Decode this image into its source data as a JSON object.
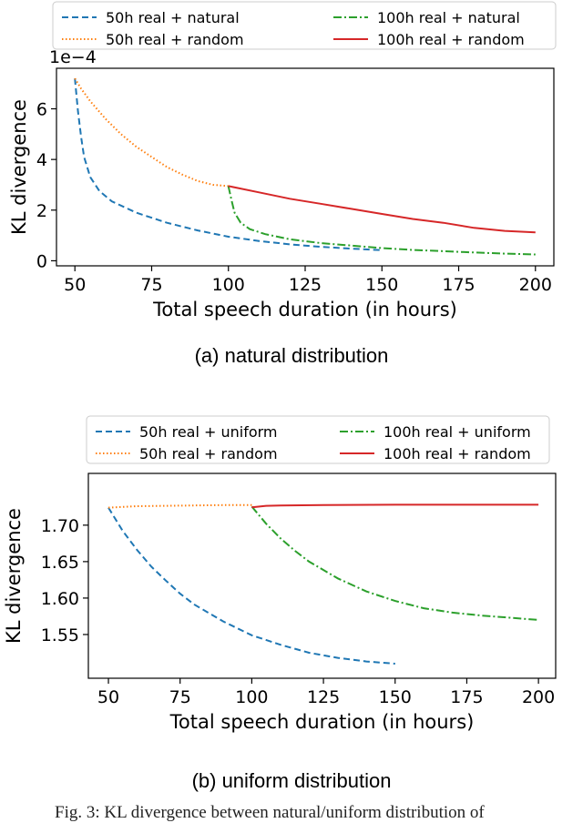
{
  "chart_data": [
    {
      "type": "line",
      "caption": "(a) natural distribution",
      "xlabel": "Total speech duration (in hours)",
      "ylabel": "KL divergence",
      "y_offset_label": "1e−4",
      "xlim": [
        44,
        206
      ],
      "ylim": [
        -0.2,
        7.6
      ],
      "xticks": [
        50,
        75,
        100,
        125,
        150,
        175,
        200
      ],
      "yticks": [
        0,
        2,
        4,
        6
      ],
      "ytick_labels": [
        "0",
        "2",
        "4",
        "6"
      ],
      "legend": "top, two columns",
      "series": [
        {
          "name": "50h real +  natural",
          "color": "#1f77b4",
          "style": "dashed",
          "x": [
            50,
            51,
            52,
            53,
            55,
            58,
            62,
            70,
            80,
            90,
            100,
            110,
            120,
            130,
            140,
            150
          ],
          "y": [
            7.2,
            5.9,
            4.9,
            4.1,
            3.3,
            2.75,
            2.35,
            1.9,
            1.5,
            1.2,
            0.95,
            0.78,
            0.65,
            0.55,
            0.48,
            0.42
          ]
        },
        {
          "name": "50h real +  random",
          "color": "#ff7f0e",
          "style": "dotted",
          "x": [
            50,
            52,
            55,
            60,
            65,
            70,
            75,
            80,
            85,
            90,
            95,
            100
          ],
          "y": [
            7.2,
            6.8,
            6.3,
            5.6,
            5.0,
            4.5,
            4.1,
            3.7,
            3.4,
            3.15,
            3.0,
            2.95
          ]
        },
        {
          "name": "100h real +  natural",
          "color": "#2ca02c",
          "style": "dashdot",
          "x": [
            100,
            101,
            102,
            104,
            107,
            112,
            120,
            130,
            140,
            150,
            160,
            170,
            180,
            190,
            200
          ],
          "y": [
            2.95,
            2.4,
            1.9,
            1.5,
            1.25,
            1.05,
            0.85,
            0.7,
            0.6,
            0.5,
            0.43,
            0.38,
            0.33,
            0.28,
            0.25
          ]
        },
        {
          "name": "100h real +  random",
          "color": "#d62728",
          "style": "solid",
          "x": [
            100,
            110,
            120,
            130,
            140,
            150,
            160,
            170,
            180,
            190,
            200
          ],
          "y": [
            2.95,
            2.7,
            2.45,
            2.25,
            2.05,
            1.85,
            1.65,
            1.5,
            1.3,
            1.18,
            1.12
          ]
        }
      ]
    },
    {
      "type": "line",
      "caption": "(b) uniform distribution",
      "xlabel": "Total speech duration (in hours)",
      "ylabel": "KL divergence",
      "xlim": [
        43,
        206
      ],
      "ylim": [
        1.49,
        1.771
      ],
      "xticks": [
        50,
        75,
        100,
        125,
        150,
        175,
        200
      ],
      "yticks": [
        1.55,
        1.6,
        1.65,
        1.7
      ],
      "ytick_labels": [
        "1.55",
        "1.60",
        "1.65",
        "1.70"
      ],
      "legend": "top, two columns",
      "series": [
        {
          "name": "50h real +  uniform",
          "color": "#1f77b4",
          "style": "dashed",
          "x": [
            50,
            55,
            60,
            65,
            70,
            75,
            80,
            90,
            100,
            110,
            120,
            130,
            140,
            150
          ],
          "y": [
            1.724,
            1.692,
            1.666,
            1.643,
            1.624,
            1.606,
            1.591,
            1.568,
            1.549,
            1.536,
            1.525,
            1.518,
            1.513,
            1.51
          ]
        },
        {
          "name": "50h real +  random",
          "color": "#ff7f0e",
          "style": "dotted",
          "x": [
            50,
            60,
            70,
            80,
            90,
            100
          ],
          "y": [
            1.724,
            1.726,
            1.7265,
            1.727,
            1.7275,
            1.7275
          ]
        },
        {
          "name": "100h real +  uniform",
          "color": "#2ca02c",
          "style": "dashdot",
          "x": [
            100,
            105,
            110,
            115,
            120,
            130,
            140,
            150,
            160,
            170,
            180,
            190,
            200
          ],
          "y": [
            1.7255,
            1.702,
            1.682,
            1.665,
            1.65,
            1.627,
            1.609,
            1.596,
            1.586,
            1.58,
            1.576,
            1.573,
            1.57
          ]
        },
        {
          "name": "100h real +  random",
          "color": "#d62728",
          "style": "solid",
          "x": [
            100,
            105,
            110,
            125,
            150,
            175,
            200
          ],
          "y": [
            1.7245,
            1.7265,
            1.727,
            1.7275,
            1.728,
            1.728,
            1.728
          ]
        }
      ]
    }
  ],
  "figure_caption": "Fig. 3: KL divergence between natural/uniform distribution of"
}
